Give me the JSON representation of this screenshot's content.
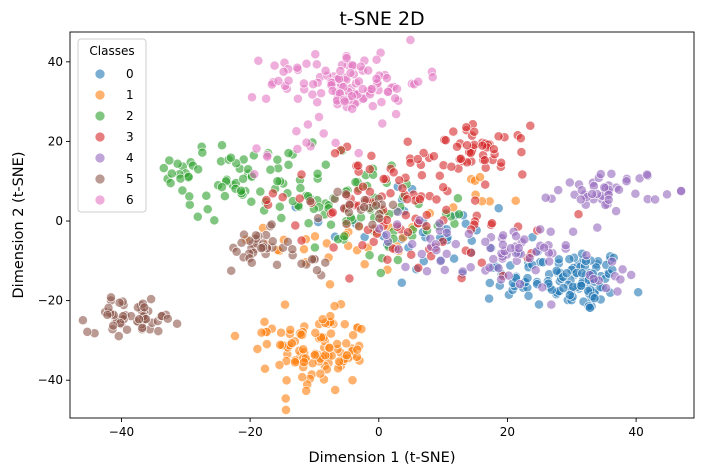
{
  "chart_data": {
    "type": "scatter",
    "title": "t-SNE 2D",
    "xlabel": "Dimension 1 (t-SNE)",
    "ylabel": "Dimension 2 (t-SNE)",
    "xlim": [
      -48,
      49
    ],
    "ylim": [
      -49.5,
      47.5
    ],
    "xticks": [
      -40,
      -20,
      0,
      20,
      40
    ],
    "yticks": [
      -40,
      -20,
      0,
      20,
      40
    ],
    "grid": false,
    "legend": {
      "title": "Classes",
      "position": "top-left"
    },
    "point_alpha": 0.6,
    "series": [
      {
        "name": "0",
        "color": "#1f77b4",
        "clusters": [
          {
            "cx": 32,
            "cy": -15,
            "sx": 3,
            "sy": 4,
            "n": 80
          },
          {
            "cx": 22,
            "cy": -14,
            "sx": 4,
            "sy": 4,
            "n": 35
          },
          {
            "cx": 10,
            "cy": -5,
            "sx": 6,
            "sy": 6,
            "n": 25
          },
          {
            "cx": 0,
            "cy": 2,
            "sx": 6,
            "sy": 5,
            "n": 12
          }
        ]
      },
      {
        "name": "1",
        "color": "#ff7f0e",
        "clusters": [
          {
            "cx": -9,
            "cy": -33,
            "sx": 3.5,
            "sy": 5,
            "n": 100
          },
          {
            "cx": -18,
            "cy": -28,
            "sx": 2.5,
            "sy": 3,
            "n": 12
          },
          {
            "cx": -3,
            "cy": -5,
            "sx": 7,
            "sy": 7,
            "n": 30
          },
          {
            "cx": 15,
            "cy": 5,
            "sx": 3,
            "sy": 3,
            "n": 8
          }
        ]
      },
      {
        "name": "2",
        "color": "#2ca02c",
        "clusters": [
          {
            "cx": -31,
            "cy": 13,
            "sx": 1.8,
            "sy": 1.5,
            "n": 14
          },
          {
            "cx": -20,
            "cy": 10,
            "sx": 5,
            "sy": 5,
            "n": 60
          },
          {
            "cx": -5,
            "cy": 5,
            "sx": 6,
            "sy": 5,
            "n": 45
          },
          {
            "cx": 5,
            "cy": -3,
            "sx": 5,
            "sy": 4,
            "n": 20
          }
        ]
      },
      {
        "name": "3",
        "color": "#d62728",
        "clusters": [
          {
            "cx": 16,
            "cy": 18,
            "sx": 3.5,
            "sy": 3,
            "n": 45
          },
          {
            "cx": 5,
            "cy": 8,
            "sx": 6,
            "sy": 6,
            "n": 50
          },
          {
            "cx": 10,
            "cy": -5,
            "sx": 7,
            "sy": 5,
            "n": 35
          },
          {
            "cx": -8,
            "cy": 5,
            "sx": 6,
            "sy": 6,
            "n": 25
          }
        ]
      },
      {
        "name": "4",
        "color": "#9467bd",
        "clusters": [
          {
            "cx": 36,
            "cy": 8,
            "sx": 4,
            "sy": 2.5,
            "n": 45
          },
          {
            "cx": 20,
            "cy": -9,
            "sx": 5,
            "sy": 4,
            "n": 55
          },
          {
            "cx": 5,
            "cy": -5,
            "sx": 5,
            "sy": 5,
            "n": 15
          },
          {
            "cx": 36,
            "cy": -15,
            "sx": 3,
            "sy": 3,
            "n": 10
          }
        ]
      },
      {
        "name": "5",
        "color": "#8c564b",
        "clusters": [
          {
            "cx": -38,
            "cy": -24,
            "sx": 3.5,
            "sy": 2,
            "n": 55
          },
          {
            "cx": -19,
            "cy": -7,
            "sx": 2.5,
            "sy": 2.5,
            "n": 35
          },
          {
            "cx": -3,
            "cy": 2,
            "sx": 3,
            "sy": 3,
            "n": 20
          },
          {
            "cx": -10,
            "cy": -10,
            "sx": 2,
            "sy": 2,
            "n": 8
          }
        ]
      },
      {
        "name": "6",
        "color": "#e377c2",
        "clusters": [
          {
            "cx": -5,
            "cy": 35,
            "sx": 6,
            "sy": 4,
            "n": 110
          },
          {
            "cx": -12,
            "cy": 18,
            "sx": 4,
            "sy": 4,
            "n": 12
          }
        ]
      }
    ]
  }
}
